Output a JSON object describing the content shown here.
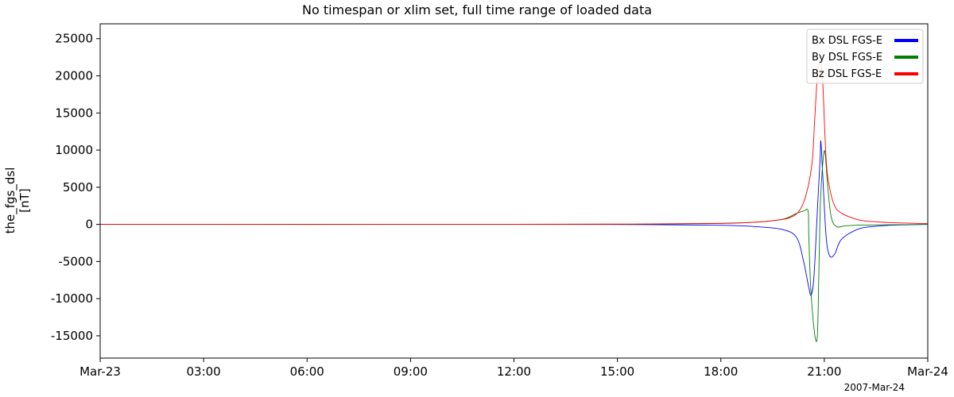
{
  "chart_data": {
    "type": "line",
    "title": "No timespan or xlim set, full time range of loaded data",
    "ylabel": [
      "the_fgs_dsl",
      "[nT]"
    ],
    "x_unit": "hours since Mar-23 00:00",
    "xlim": [
      0,
      24
    ],
    "ylim": [
      -18000,
      27000
    ],
    "x_ticks": [
      {
        "value": 0,
        "label": "Mar-23"
      },
      {
        "value": 3,
        "label": "03:00"
      },
      {
        "value": 6,
        "label": "06:00"
      },
      {
        "value": 9,
        "label": "09:00"
      },
      {
        "value": 12,
        "label": "12:00"
      },
      {
        "value": 15,
        "label": "15:00"
      },
      {
        "value": 18,
        "label": "18:00"
      },
      {
        "value": 21,
        "label": "21:00"
      },
      {
        "value": 24,
        "label": "Mar-24"
      }
    ],
    "y_ticks": [
      -15000,
      -10000,
      -5000,
      0,
      5000,
      10000,
      15000,
      20000,
      25000
    ],
    "date_annotation": "2007-Mar-24",
    "legend_position": "top-right",
    "grid": false,
    "series": [
      {
        "name": "Bx DSL FGS-E",
        "color": "#0000ff",
        "x": [
          0,
          12,
          16,
          18,
          19,
          19.8,
          20.2,
          20.4,
          20.55,
          20.62,
          20.7,
          20.8,
          20.88,
          20.9,
          20.95,
          21.05,
          21.15,
          21.3,
          21.5,
          22,
          22.5,
          23,
          24
        ],
        "y": [
          0,
          0,
          -30,
          -120,
          -300,
          -700,
          -1800,
          -5000,
          -8500,
          -9500,
          -7000,
          2000,
          9000,
          11200,
          7000,
          -1500,
          -4200,
          -4000,
          -2000,
          -600,
          -250,
          -100,
          0
        ]
      },
      {
        "name": "By DSL FGS-E",
        "color": "#008000",
        "x": [
          0,
          12,
          16,
          18,
          19,
          19.8,
          20.2,
          20.4,
          20.53,
          20.55,
          20.6,
          20.7,
          20.78,
          20.82,
          20.88,
          20.96,
          21.02,
          21.1,
          21.2,
          21.35,
          21.6,
          22,
          23,
          24
        ],
        "y": [
          0,
          0,
          30,
          120,
          300,
          700,
          1500,
          1800,
          1800,
          -1500,
          -8000,
          -14000,
          -15700,
          -12000,
          2000,
          8500,
          9700,
          5000,
          1000,
          -300,
          -200,
          -100,
          -50,
          0
        ]
      },
      {
        "name": "Bz DSL FGS-E",
        "color": "#ff0000",
        "x": [
          0,
          12,
          16,
          18,
          19,
          19.5,
          20,
          20.3,
          20.5,
          20.65,
          20.72,
          20.8,
          20.88,
          20.95,
          21.05,
          21.15,
          21.3,
          21.5,
          22,
          22.5,
          23,
          24
        ],
        "y": [
          0,
          10,
          60,
          150,
          300,
          500,
          900,
          2000,
          4500,
          8500,
          14000,
          20000,
          22000,
          19500,
          9000,
          5000,
          2500,
          1500,
          600,
          350,
          220,
          100
        ]
      }
    ]
  }
}
